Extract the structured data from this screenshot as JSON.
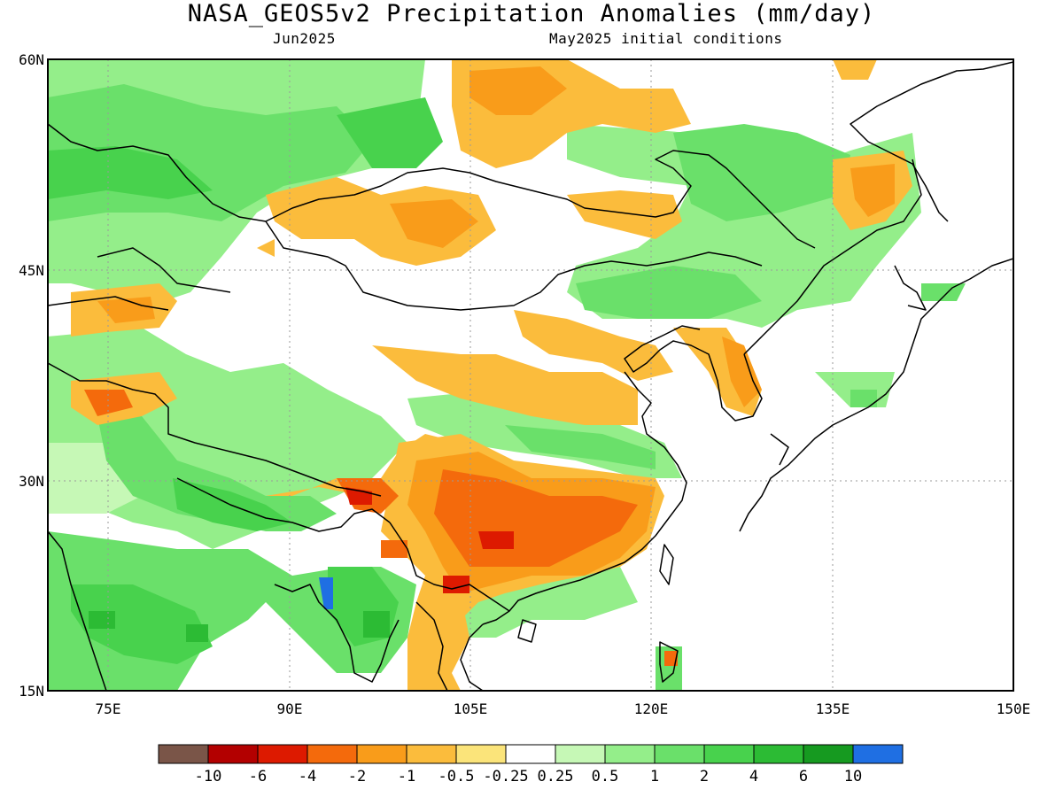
{
  "title": "NASA_GEOS5v2 Precipitation Anomalies (mm/day)",
  "subtitle_left": "Jun2025",
  "subtitle_right": "May2025 initial conditions",
  "lat_labels": [
    "60N",
    "45N",
    "30N",
    "15N"
  ],
  "lon_labels": [
    "75E",
    "90E",
    "105E",
    "120E",
    "135E",
    "150E"
  ],
  "legend": {
    "labels": [
      "-10",
      "-6",
      "-4",
      "-2",
      "-1",
      "-0.5",
      "-0.25",
      "0.25",
      "0.5",
      "1",
      "2",
      "4",
      "6",
      "10"
    ],
    "colors": [
      "#7a5548",
      "#b30000",
      "#dd1a00",
      "#f46a0c",
      "#f99c1a",
      "#fbbc3c",
      "#fbe47a",
      "#ffffff",
      "#c6f8b6",
      "#94ee8a",
      "#6ae06a",
      "#48d24d",
      "#2cbb34",
      "#169a20",
      "#1f6fe3"
    ]
  },
  "colors": {
    "ocean_bg": "#ffffff",
    "coast": "#000000",
    "gridline": "#9a9a9a"
  }
}
